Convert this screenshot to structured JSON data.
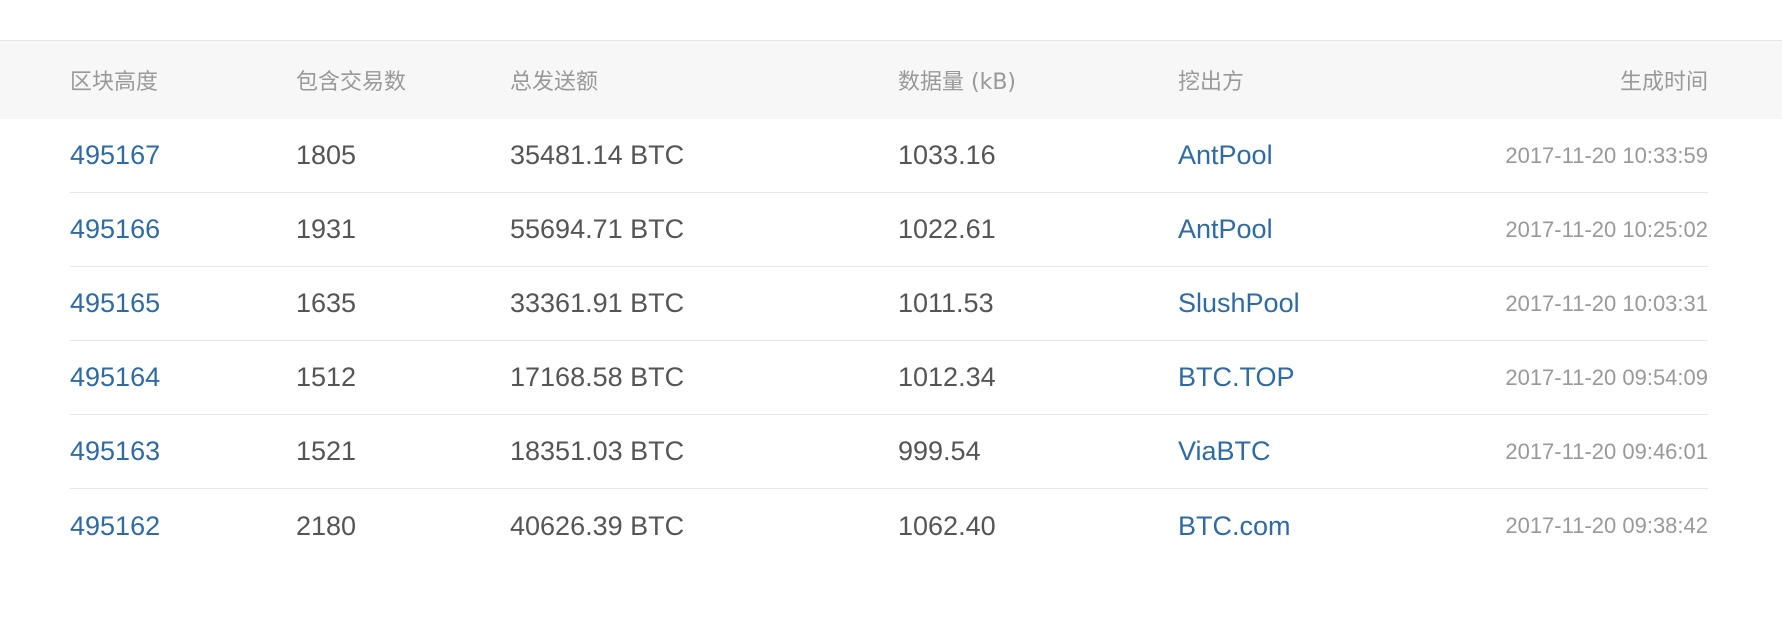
{
  "columns": {
    "height": "区块高度",
    "tx_count": "包含交易数",
    "total_sent": "总发送额",
    "size": "数据量 (kB)",
    "miner": "挖出方",
    "time": "生成时间"
  },
  "rows": [
    {
      "height": "495167",
      "tx_count": "1805",
      "total_sent": "35481.14 BTC",
      "size": "1033.16",
      "miner": "AntPool",
      "time": "2017-11-20 10:33:59"
    },
    {
      "height": "495166",
      "tx_count": "1931",
      "total_sent": "55694.71 BTC",
      "size": "1022.61",
      "miner": "AntPool",
      "time": "2017-11-20 10:25:02"
    },
    {
      "height": "495165",
      "tx_count": "1635",
      "total_sent": "33361.91 BTC",
      "size": "1011.53",
      "miner": "SlushPool",
      "time": "2017-11-20 10:03:31"
    },
    {
      "height": "495164",
      "tx_count": "1512",
      "total_sent": "17168.58 BTC",
      "size": "1012.34",
      "miner": "BTC.TOP",
      "time": "2017-11-20 09:54:09"
    },
    {
      "height": "495163",
      "tx_count": "1521",
      "total_sent": "18351.03 BTC",
      "size": "999.54",
      "miner": "ViaBTC",
      "time": "2017-11-20 09:46:01"
    },
    {
      "height": "495162",
      "tx_count": "2180",
      "total_sent": "40626.39 BTC",
      "size": "1062.40",
      "miner": "BTC.com",
      "time": "2017-11-20 09:38:42"
    }
  ],
  "colors": {
    "link": "#2f6aa3",
    "text": "#555555",
    "muted": "#999999",
    "header_bg": "#f7f7f7",
    "divider": "#e6e6e6"
  }
}
